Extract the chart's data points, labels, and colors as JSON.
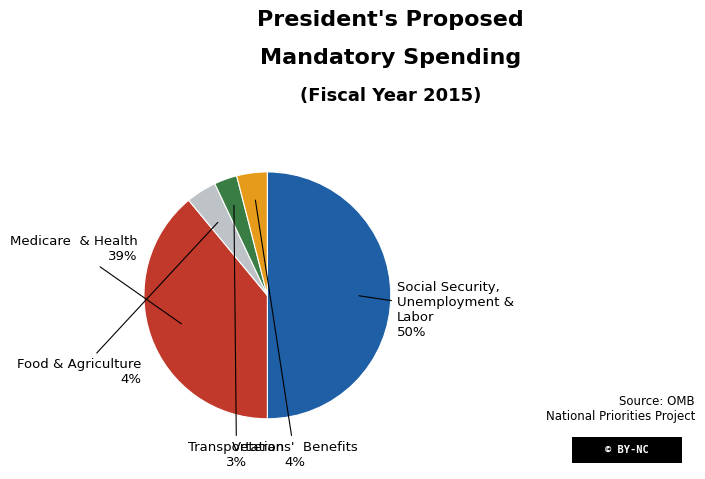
{
  "title_line1": "President's Proposed",
  "title_line2": "Mandatory Spending",
  "title_line3": "(Fiscal Year 2015)",
  "slices": [
    {
      "label": "Social Security,\nUnemployment &\nLabor\n50%",
      "value": 50,
      "color": "#1f5fa6"
    },
    {
      "label": "Medicare  & Health\n39%",
      "value": 39,
      "color": "#c0392b"
    },
    {
      "label": "Food & Agriculture\n4%",
      "value": 4,
      "color": "#bdc3c7"
    },
    {
      "label": "Transportation\n3%",
      "value": 3,
      "color": "#3a7d44"
    },
    {
      "label": "Veterans'  Benefits\n4%",
      "value": 4,
      "color": "#e69c1a"
    }
  ],
  "source_text": "Source: OMB\nNational Priorities Project",
  "background_color": "#ffffff",
  "title_fontsize": 16,
  "label_fontsize": 9.5
}
